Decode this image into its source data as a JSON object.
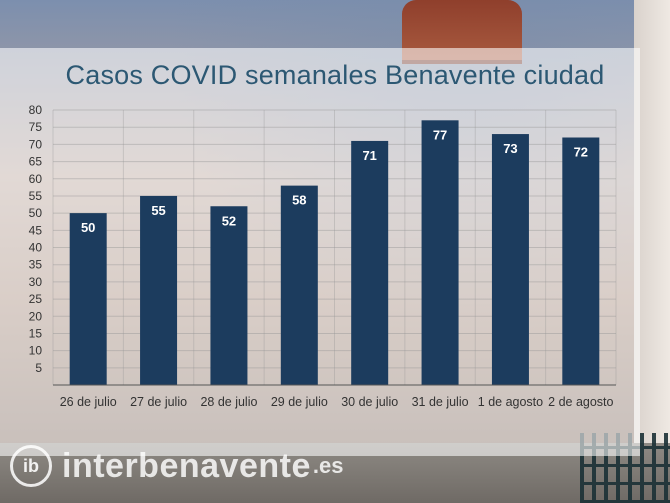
{
  "chart_data": {
    "type": "bar",
    "title": "Casos COVID semanales Benavente ciudad",
    "categories": [
      "26 de julio",
      "27 de julio",
      "28 de julio",
      "29 de julio",
      "30 de julio",
      "31 de julio",
      "1 de agosto",
      "2 de agosto"
    ],
    "values": [
      50,
      55,
      52,
      58,
      71,
      77,
      73,
      72
    ],
    "ylim": [
      0,
      80
    ],
    "yticks": [
      5,
      10,
      15,
      20,
      25,
      30,
      35,
      40,
      45,
      50,
      55,
      60,
      65,
      70,
      75,
      80
    ],
    "grid": true,
    "bar_color": "#1c3c5e",
    "label_color": "#ffffff"
  },
  "watermark": {
    "logo_text": "ib",
    "text": "interbenavente",
    "tld": ".es"
  }
}
